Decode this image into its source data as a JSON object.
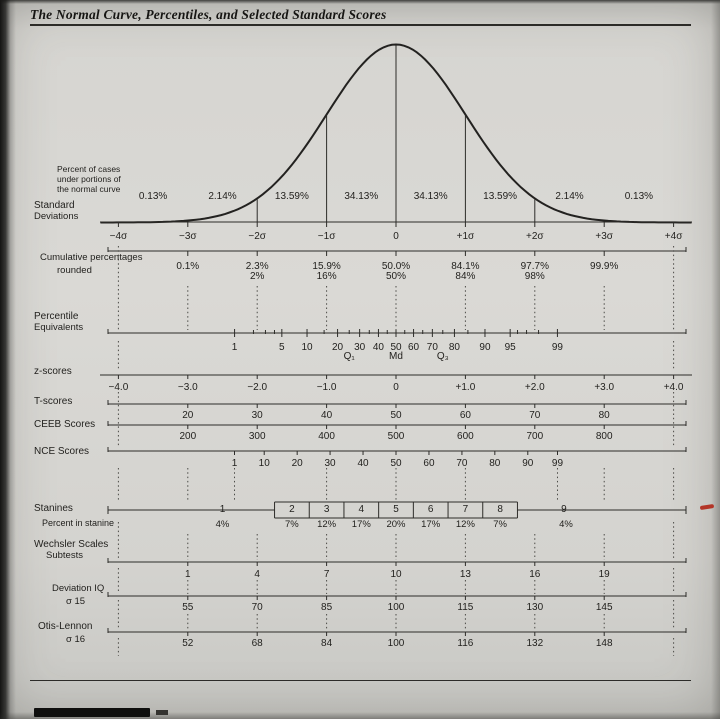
{
  "title": "The Normal Curve, Percentiles, and Selected Standard Scores",
  "colors": {
    "ink": "#2d2c29",
    "curve": "#232220",
    "dotted": "#4c4b47",
    "paper": "#d7d6d2",
    "red_mark": "#b33527"
  },
  "curve": {
    "cases_caption_lines": [
      "Percent of cases",
      "under portions of",
      "the normal curve"
    ],
    "segment_percents": [
      {
        "z": -3.5,
        "text": "0.13%"
      },
      {
        "z": -2.5,
        "text": "2.14%"
      },
      {
        "z": -1.5,
        "text": "13.59%"
      },
      {
        "z": -0.5,
        "text": "34.13%"
      },
      {
        "z": 0.5,
        "text": "34.13%"
      },
      {
        "z": 1.5,
        "text": "13.59%"
      },
      {
        "z": 2.5,
        "text": "2.14%"
      },
      {
        "z": 3.5,
        "text": "0.13%"
      }
    ]
  },
  "scales": [
    {
      "id": "standard-deviations",
      "label_lines": [
        "Standard",
        "Deviations"
      ],
      "ticks": [
        {
          "z": -4,
          "label": "−4σ"
        },
        {
          "z": -3,
          "label": "−3σ"
        },
        {
          "z": -2,
          "label": "−2σ"
        },
        {
          "z": -1,
          "label": "−1σ"
        },
        {
          "z": 0,
          "label": "0"
        },
        {
          "z": 1,
          "label": "+1σ"
        },
        {
          "z": 2,
          "label": "+2σ"
        },
        {
          "z": 3,
          "label": "+3σ"
        },
        {
          "z": 4,
          "label": "+4σ"
        }
      ]
    },
    {
      "id": "cumulative-percentages",
      "label_lines": [
        "Cumulative percentages",
        "rounded"
      ],
      "ticks": [
        {
          "z": -3,
          "label": "0.1%"
        },
        {
          "z": -2,
          "label": "2.3%"
        },
        {
          "z": -1,
          "label": "15.9%"
        },
        {
          "z": 0,
          "label": "50.0%"
        },
        {
          "z": 1,
          "label": "84.1%"
        },
        {
          "z": 2,
          "label": "97.7%"
        },
        {
          "z": 3,
          "label": "99.9%"
        }
      ],
      "row2": [
        {
          "z": -2,
          "label": "2%"
        },
        {
          "z": -1,
          "label": "16%"
        },
        {
          "z": 0,
          "label": "50%"
        },
        {
          "z": 1,
          "label": "84%"
        },
        {
          "z": 2,
          "label": "98%"
        }
      ]
    },
    {
      "id": "percentile-equivalents",
      "label_lines": [
        "Percentile",
        "Equivalents"
      ],
      "ticks": [
        {
          "z": -2.326,
          "label": "1"
        },
        {
          "z": -1.645,
          "label": "5"
        },
        {
          "z": -1.282,
          "label": "10"
        },
        {
          "z": -0.842,
          "label": "20"
        },
        {
          "z": -0.524,
          "label": "30"
        },
        {
          "z": -0.253,
          "label": "40"
        },
        {
          "z": 0,
          "label": "50"
        },
        {
          "z": 0.253,
          "label": "60"
        },
        {
          "z": 0.524,
          "label": "70"
        },
        {
          "z": 0.842,
          "label": "80"
        },
        {
          "z": 1.282,
          "label": "90"
        },
        {
          "z": 1.645,
          "label": "95"
        },
        {
          "z": 2.326,
          "label": "99"
        }
      ],
      "minor_ticks_z": [
        -2.054,
        -1.881,
        -1.751,
        -1.036,
        -0.674,
        -0.385,
        -0.126,
        0.126,
        0.385,
        0.674,
        1.036,
        1.751,
        1.881,
        2.054
      ],
      "sub_labels": [
        {
          "z": -0.674,
          "label": "Q₁"
        },
        {
          "z": 0,
          "label": "Md"
        },
        {
          "z": 0.674,
          "label": "Q₃"
        }
      ]
    },
    {
      "id": "z-scores",
      "label_lines": [
        "z-scores"
      ],
      "ticks": [
        {
          "z": -4,
          "label": "−4.0"
        },
        {
          "z": -3,
          "label": "−3.0"
        },
        {
          "z": -2,
          "label": "−2.0"
        },
        {
          "z": -1,
          "label": "−1.0"
        },
        {
          "z": 0,
          "label": "0"
        },
        {
          "z": 1,
          "label": "+1.0"
        },
        {
          "z": 2,
          "label": "+2.0"
        },
        {
          "z": 3,
          "label": "+3.0"
        },
        {
          "z": 4,
          "label": "+4.0"
        }
      ]
    },
    {
      "id": "t-scores",
      "label_lines": [
        "T-scores"
      ],
      "ticks": [
        {
          "z": -3,
          "label": "20"
        },
        {
          "z": -2,
          "label": "30"
        },
        {
          "z": -1,
          "label": "40"
        },
        {
          "z": 0,
          "label": "50"
        },
        {
          "z": 1,
          "label": "60"
        },
        {
          "z": 2,
          "label": "70"
        },
        {
          "z": 3,
          "label": "80"
        }
      ]
    },
    {
      "id": "ceeb-scores",
      "label_lines": [
        "CEEB Scores"
      ],
      "ticks": [
        {
          "z": -3,
          "label": "200"
        },
        {
          "z": -2,
          "label": "300"
        },
        {
          "z": -1,
          "label": "400"
        },
        {
          "z": 0,
          "label": "500"
        },
        {
          "z": 1,
          "label": "600"
        },
        {
          "z": 2,
          "label": "700"
        },
        {
          "z": 3,
          "label": "800"
        }
      ]
    },
    {
      "id": "nce-scores",
      "label_lines": [
        "NCE Scores"
      ],
      "ticks": [
        {
          "z": -2.327,
          "label": "1"
        },
        {
          "z": -1.899,
          "label": "10"
        },
        {
          "z": -1.424,
          "label": "20"
        },
        {
          "z": -0.95,
          "label": "30"
        },
        {
          "z": -0.475,
          "label": "40"
        },
        {
          "z": 0,
          "label": "50"
        },
        {
          "z": 0.475,
          "label": "60"
        },
        {
          "z": 0.95,
          "label": "70"
        },
        {
          "z": 1.424,
          "label": "80"
        },
        {
          "z": 1.899,
          "label": "90"
        },
        {
          "z": 2.327,
          "label": "99"
        }
      ]
    },
    {
      "id": "wechsler-subtests",
      "label_lines": [
        "Wechsler Scales",
        "Subtests"
      ],
      "ticks": [
        {
          "z": -3,
          "label": "1"
        },
        {
          "z": -2,
          "label": "4"
        },
        {
          "z": -1,
          "label": "7"
        },
        {
          "z": 0,
          "label": "10"
        },
        {
          "z": 1,
          "label": "13"
        },
        {
          "z": 2,
          "label": "16"
        },
        {
          "z": 3,
          "label": "19"
        }
      ]
    },
    {
      "id": "deviation-iq",
      "label_lines": [
        "Deviation IQ",
        "σ 15"
      ],
      "ticks": [
        {
          "z": -3,
          "label": "55"
        },
        {
          "z": -2,
          "label": "70"
        },
        {
          "z": -1,
          "label": "85"
        },
        {
          "z": 0,
          "label": "100"
        },
        {
          "z": 1,
          "label": "115"
        },
        {
          "z": 2,
          "label": "130"
        },
        {
          "z": 3,
          "label": "145"
        }
      ]
    },
    {
      "id": "otis-lennon",
      "label_lines": [
        "Otis-Lennon",
        "σ 16"
      ],
      "ticks": [
        {
          "z": -3,
          "label": "52"
        },
        {
          "z": -2,
          "label": "68"
        },
        {
          "z": -1,
          "label": "84"
        },
        {
          "z": 0,
          "label": "100"
        },
        {
          "z": 1,
          "label": "116"
        },
        {
          "z": 2,
          "label": "132"
        },
        {
          "z": 3,
          "label": "148"
        }
      ]
    }
  ],
  "stanines": {
    "label": "Stanines",
    "cells": [
      {
        "value": "1",
        "z": -2.5,
        "boxed": false
      },
      {
        "value": "2",
        "z": -1.5,
        "boxed": true
      },
      {
        "value": "3",
        "z": -1.0,
        "boxed": true
      },
      {
        "value": "4",
        "z": -0.5,
        "boxed": true
      },
      {
        "value": "5",
        "z": 0.0,
        "boxed": true
      },
      {
        "value": "6",
        "z": 0.5,
        "boxed": true
      },
      {
        "value": "7",
        "z": 1.0,
        "boxed": true
      },
      {
        "value": "8",
        "z": 1.5,
        "boxed": true
      },
      {
        "value": "9",
        "z": 2.42,
        "boxed": false
      }
    ],
    "percent_label": "Percent in stanine",
    "percents": [
      {
        "z": -2.5,
        "label": "4%"
      },
      {
        "z": -1.5,
        "label": "7%"
      },
      {
        "z": -1.0,
        "label": "12%"
      },
      {
        "z": -0.5,
        "label": "17%"
      },
      {
        "z": 0.0,
        "label": "20%"
      },
      {
        "z": 0.5,
        "label": "17%"
      },
      {
        "z": 1.0,
        "label": "12%"
      },
      {
        "z": 1.5,
        "label": "7%"
      },
      {
        "z": 2.45,
        "label": "4%"
      }
    ]
  }
}
